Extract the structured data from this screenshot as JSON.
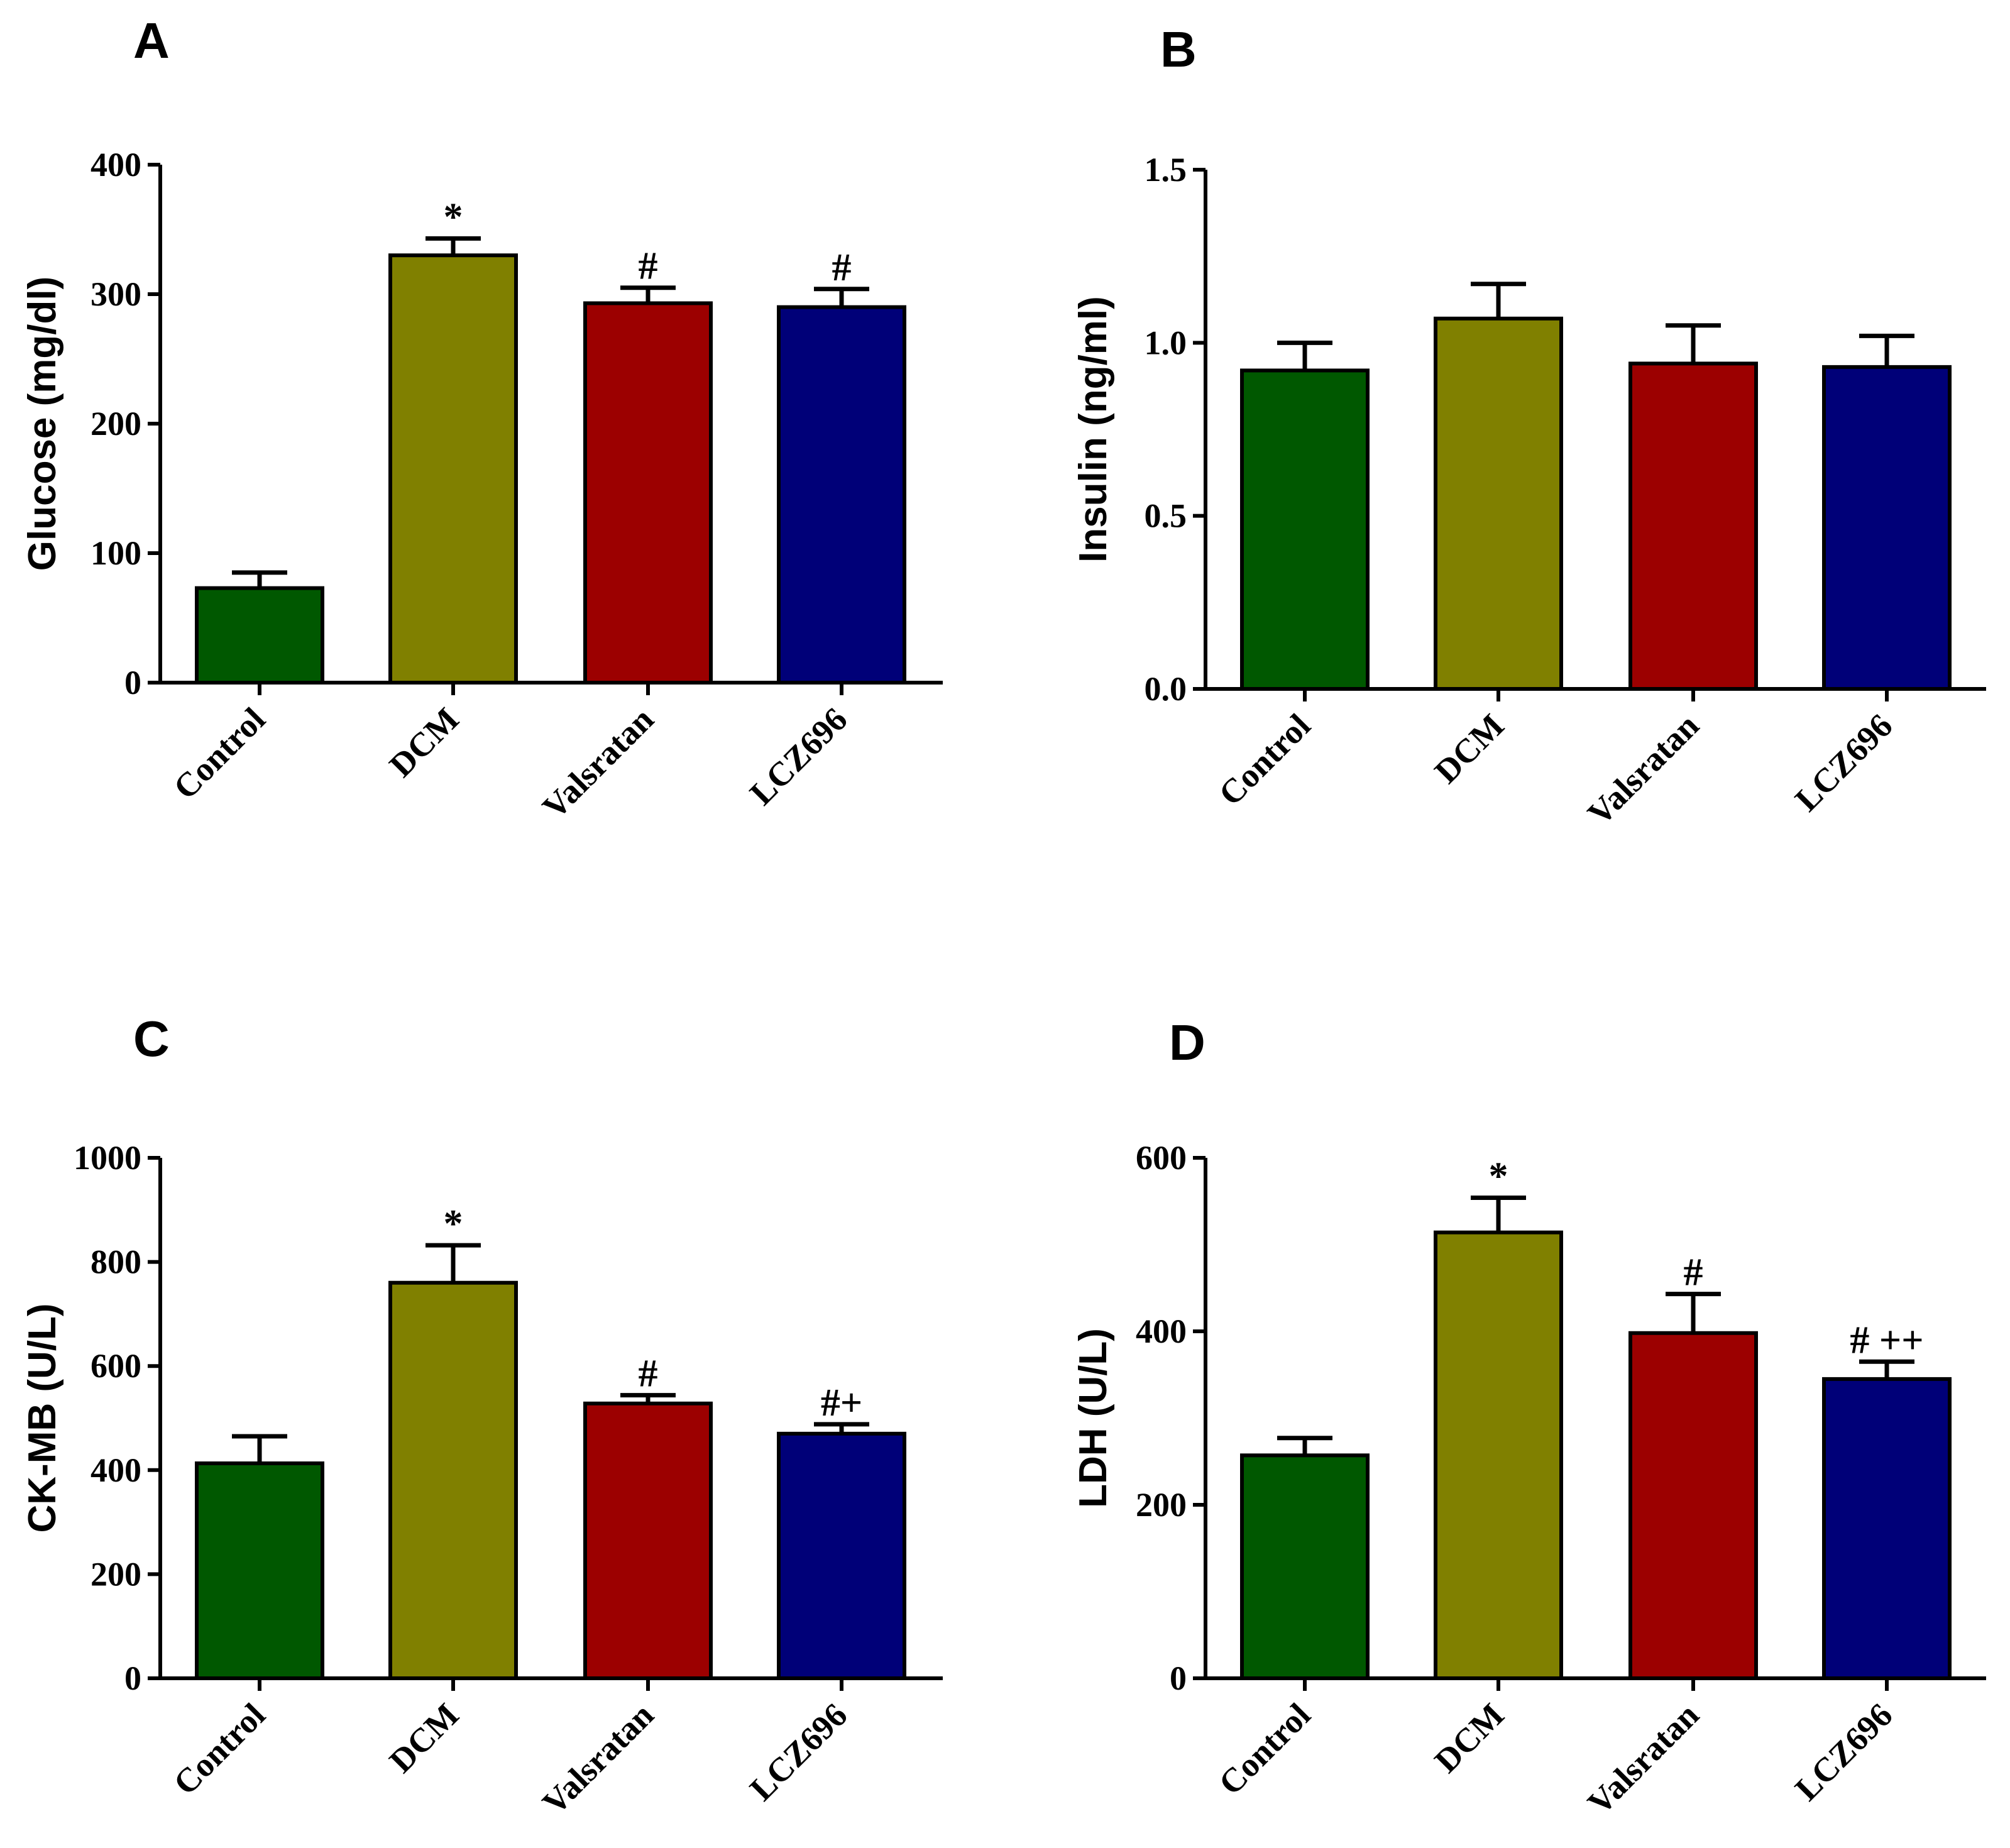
{
  "colors": [
    "#005800",
    "#808000",
    "#9c0000",
    "#000078"
  ],
  "chart_data": [
    {
      "panel": "A",
      "type": "bar",
      "categories": [
        "Control",
        "DCM",
        "Valsratan",
        "LCZ696"
      ],
      "values": [
        73,
        330,
        293,
        290
      ],
      "errors": [
        12,
        13,
        12,
        14
      ],
      "annotations": [
        "",
        "*",
        "#",
        "#"
      ],
      "ylabel": "Glucose (mg/dl)",
      "ylim": [
        0,
        400
      ],
      "yticks": [
        0,
        100,
        200,
        300,
        400
      ],
      "ytick_labels": [
        "0",
        "100",
        "200",
        "300",
        "400"
      ]
    },
    {
      "panel": "B",
      "type": "bar",
      "categories": [
        "Control",
        "DCM",
        "Valsratan",
        "LCZ696"
      ],
      "values": [
        0.92,
        1.07,
        0.94,
        0.93
      ],
      "errors": [
        0.08,
        0.1,
        0.11,
        0.09
      ],
      "annotations": [
        "",
        "",
        "",
        ""
      ],
      "ylabel": "Insulin (ng/ml)",
      "ylim": [
        0,
        1.5
      ],
      "yticks": [
        0,
        0.5,
        1.0,
        1.5
      ],
      "ytick_labels": [
        "0.0",
        "0.5",
        "1.0",
        "1.5"
      ]
    },
    {
      "panel": "C",
      "type": "bar",
      "categories": [
        "Control",
        "DCM",
        "Valsratan",
        "LCZ696"
      ],
      "values": [
        413,
        760,
        528,
        470
      ],
      "errors": [
        52,
        72,
        16,
        18
      ],
      "annotations": [
        "",
        "*",
        "#",
        "#+"
      ],
      "ylabel": "CK-MB (U/L)",
      "ylim": [
        0,
        1000
      ],
      "yticks": [
        0,
        200,
        400,
        600,
        800,
        1000
      ],
      "ytick_labels": [
        "0",
        "200",
        "400",
        "600",
        "800",
        "1000"
      ]
    },
    {
      "panel": "D",
      "type": "bar",
      "categories": [
        "Control",
        "DCM",
        "Valsratan",
        "LCZ696"
      ],
      "values": [
        257,
        514,
        398,
        345
      ],
      "errors": [
        20,
        40,
        45,
        20
      ],
      "annotations": [
        "",
        "*",
        "#",
        "# ++"
      ],
      "ylabel": "LDH (U/L)",
      "ylim": [
        0,
        600
      ],
      "yticks": [
        0,
        200,
        400,
        600
      ],
      "ytick_labels": [
        "0",
        "200",
        "400",
        "600"
      ]
    }
  ]
}
